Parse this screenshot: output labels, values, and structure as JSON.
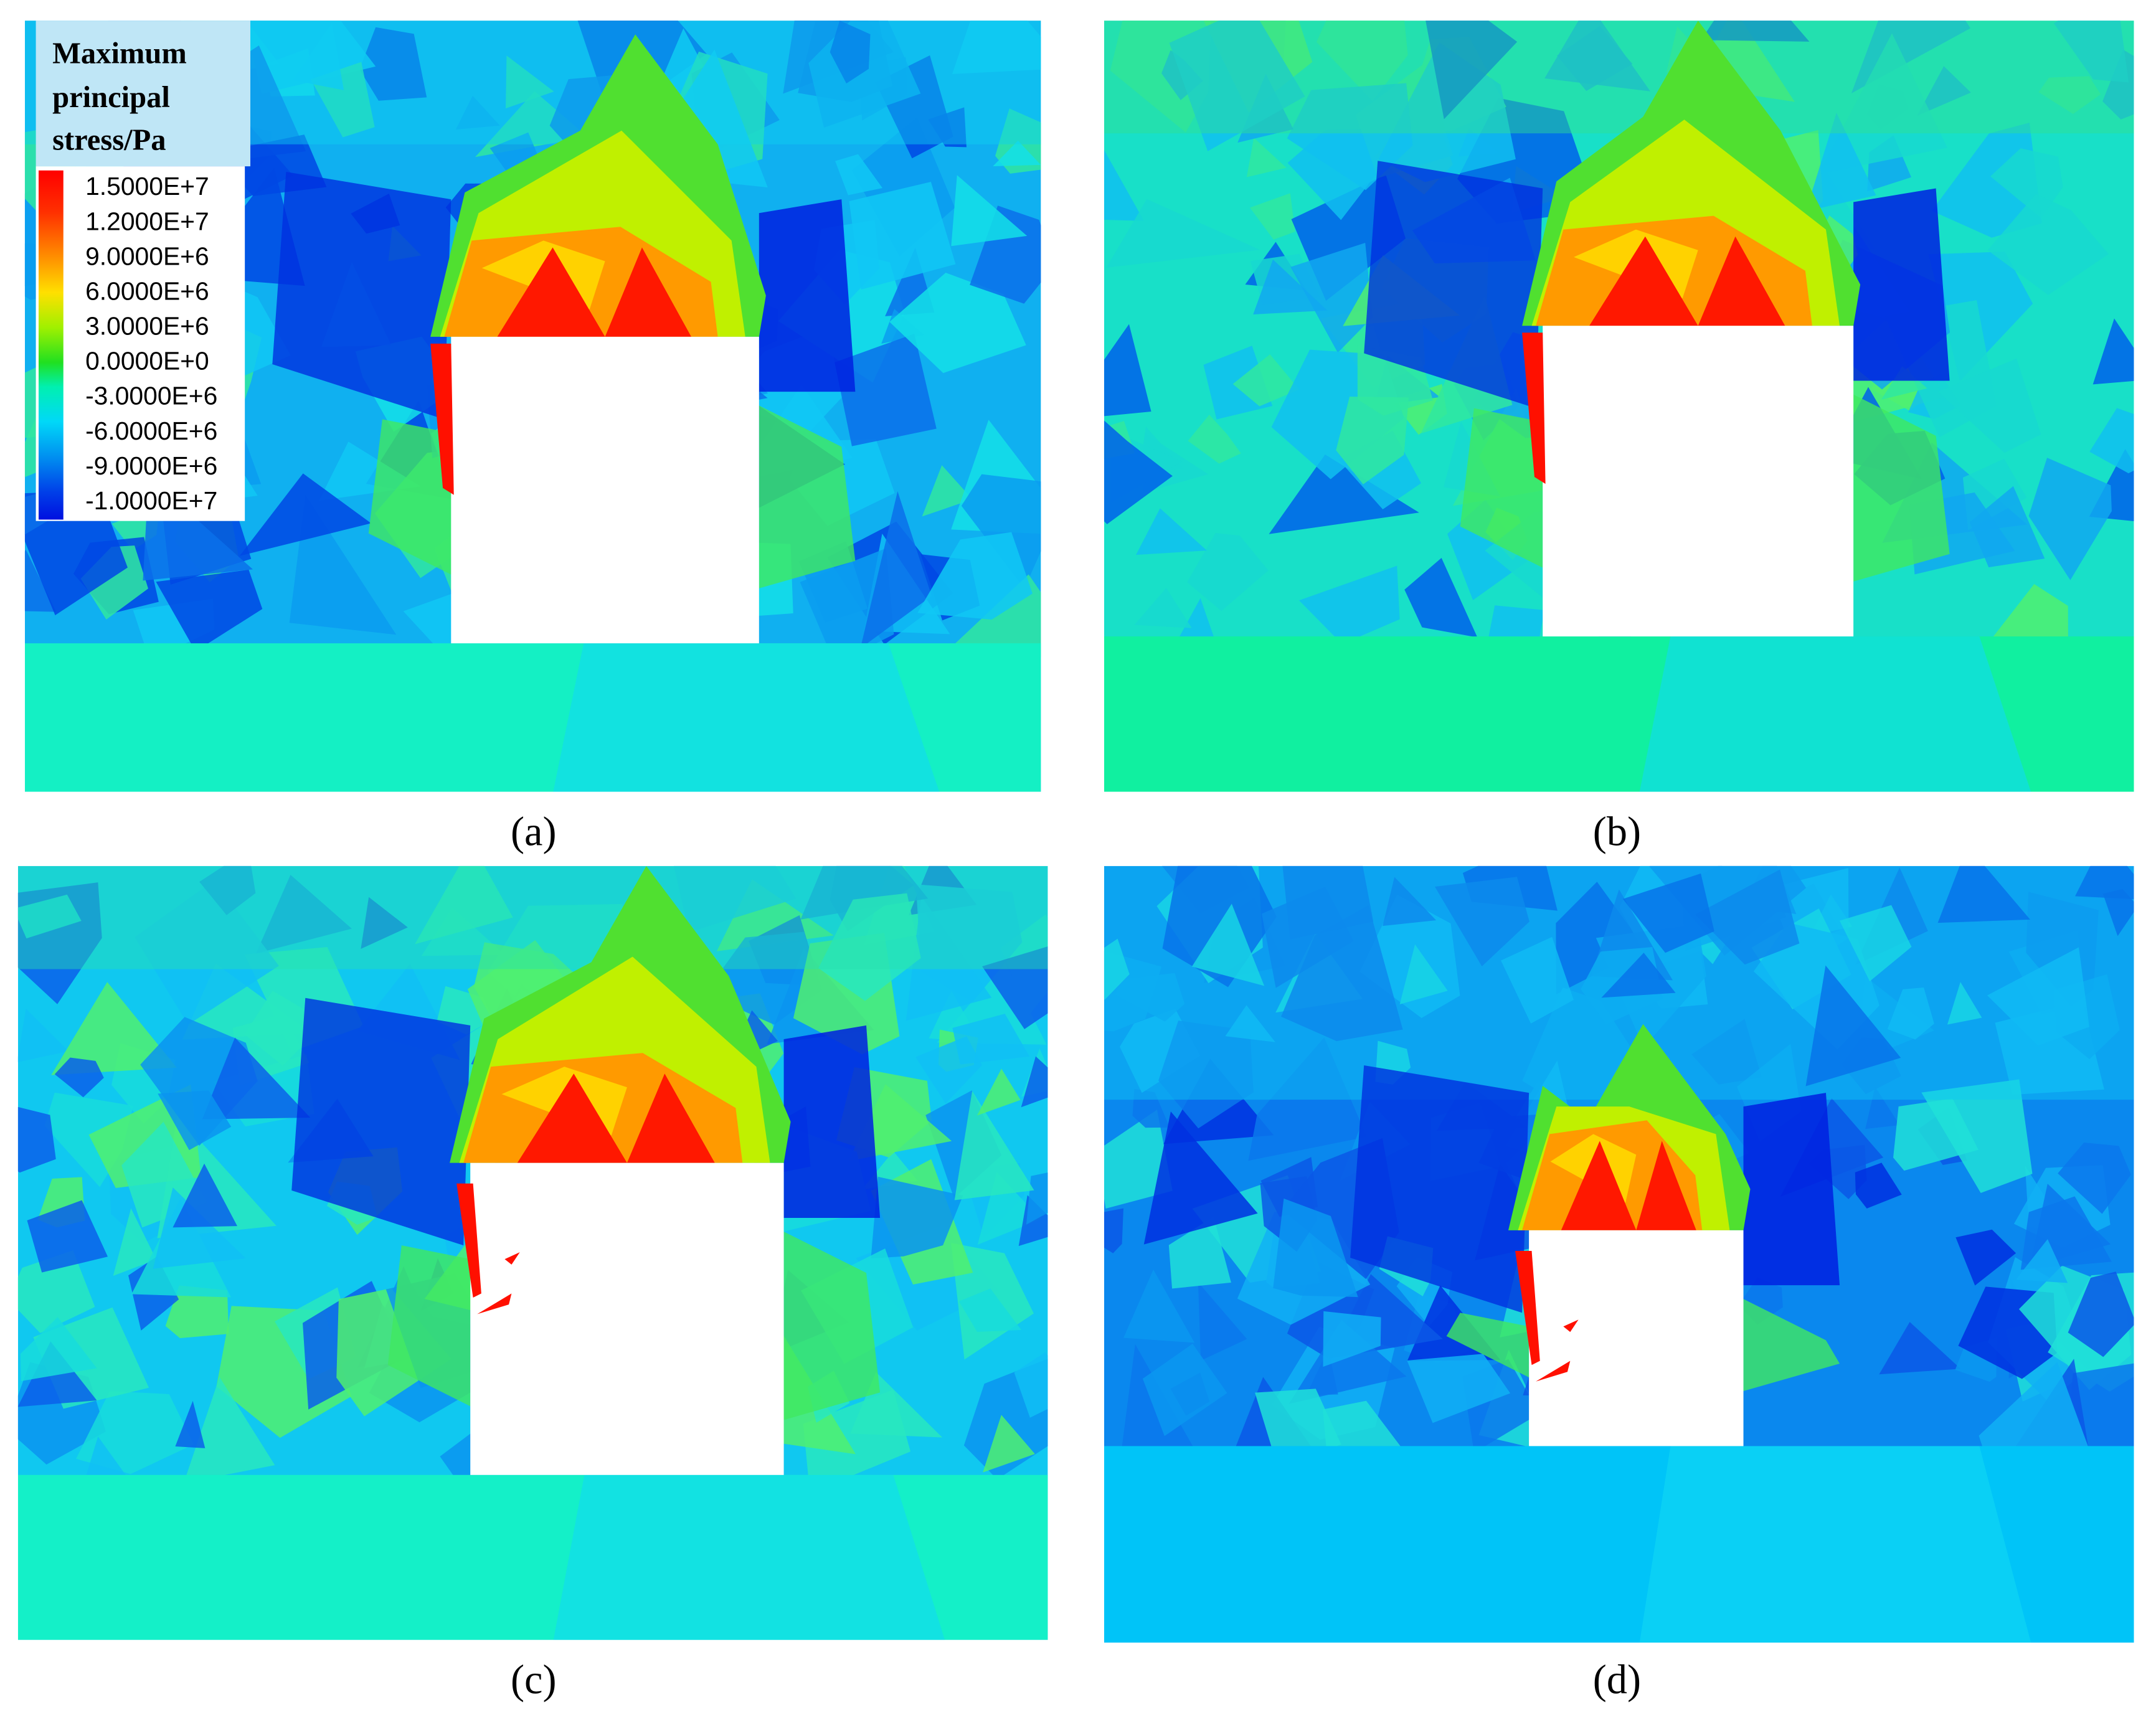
{
  "legend": {
    "title": [
      "Maximum",
      "principal",
      "stress/Pa"
    ],
    "labels": [
      "1.5000E+7",
      "1.2000E+7",
      "9.0000E+6",
      "6.0000E+6",
      "3.0000E+6",
      "0.0000E+0",
      "-3.0000E+6",
      "-6.0000E+6",
      "-9.0000E+6",
      "-1.0000E+7"
    ]
  },
  "panels": [
    {
      "caption": "(a)"
    },
    {
      "caption": "(b)"
    },
    {
      "caption": "(c)"
    },
    {
      "caption": "(d)"
    }
  ]
}
